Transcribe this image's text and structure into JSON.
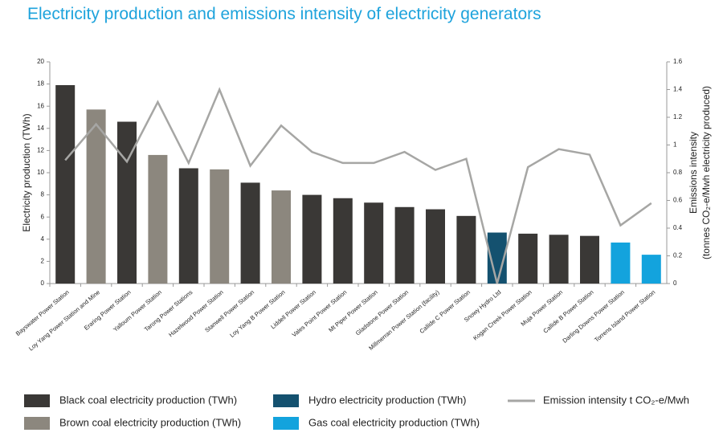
{
  "chart_data": {
    "type": "bar",
    "title": "Electricity production and emissions intensity of electricity generators",
    "y_label": "Electricity production (TWh)",
    "y2_label": [
      "Emissions intensity",
      "(tonnes CO₂-e/Mwh electricity produced)"
    ],
    "categories": [
      "Bayswater Power Station",
      "Loy Yang Power Station and Mine",
      "Eraring Power Station",
      "Yallourn Power Station",
      "Tarong Power Stations",
      "Hazelwood Power Station",
      "Stanwell Power Station",
      "Loy Yang B Power Station",
      "Liddell Power Station",
      "Vales Point Power Station",
      "Mt Piper Power Station",
      "Gladstone Power Station",
      "Millmerran Power Station (facility)",
      "Callide C Power Station",
      "Snowy Hydro Ltd",
      "Kogan Creek Power Station",
      "Muja Power Station",
      "Callide B Power Station",
      "Darling Downs Power Station",
      "Torrens Island Power Station"
    ],
    "series": [
      {
        "name": "Black coal electricity production (TWh)",
        "color": "#3a3836",
        "values": [
          17.9,
          null,
          14.6,
          null,
          10.4,
          null,
          9.1,
          null,
          8.0,
          7.7,
          7.3,
          6.9,
          6.7,
          6.1,
          null,
          4.5,
          4.4,
          4.3,
          null,
          null
        ]
      },
      {
        "name": "Brown coal electricity production (TWh)",
        "color": "#8c877e",
        "values": [
          null,
          15.7,
          null,
          11.6,
          null,
          10.3,
          null,
          8.4,
          null,
          null,
          null,
          null,
          null,
          null,
          null,
          null,
          null,
          null,
          null,
          null
        ]
      },
      {
        "name": "Hydro electricity production (TWh)",
        "color": "#14516f",
        "values": [
          null,
          null,
          null,
          null,
          null,
          null,
          null,
          null,
          null,
          null,
          null,
          null,
          null,
          null,
          4.6,
          null,
          null,
          null,
          null,
          null
        ]
      },
      {
        "name": "Gas coal electricity production (TWh)",
        "color": "#13a3dd",
        "values": [
          null,
          null,
          null,
          null,
          null,
          null,
          null,
          null,
          null,
          null,
          null,
          null,
          null,
          null,
          null,
          null,
          null,
          null,
          3.7,
          2.6
        ]
      },
      {
        "name": "Emission intensity t CO₂-e/Mwh",
        "color": "#a6a6a4",
        "axis": "y2",
        "values": [
          0.89,
          1.15,
          0.88,
          1.31,
          0.87,
          1.4,
          0.85,
          1.14,
          0.95,
          0.87,
          0.87,
          0.95,
          0.82,
          0.9,
          0,
          0.84,
          0.97,
          0.93,
          0.42,
          0.58
        ]
      }
    ],
    "ylim": [
      0,
      20
    ],
    "yticks": [
      0,
      2,
      4,
      6,
      8,
      10,
      12,
      14,
      16,
      18,
      20
    ],
    "y2lim": [
      0,
      1.6
    ],
    "y2ticks": [
      0,
      0.2,
      0.4,
      0.6,
      0.8,
      1,
      1.2,
      1.4,
      1.6
    ],
    "grid": false
  }
}
